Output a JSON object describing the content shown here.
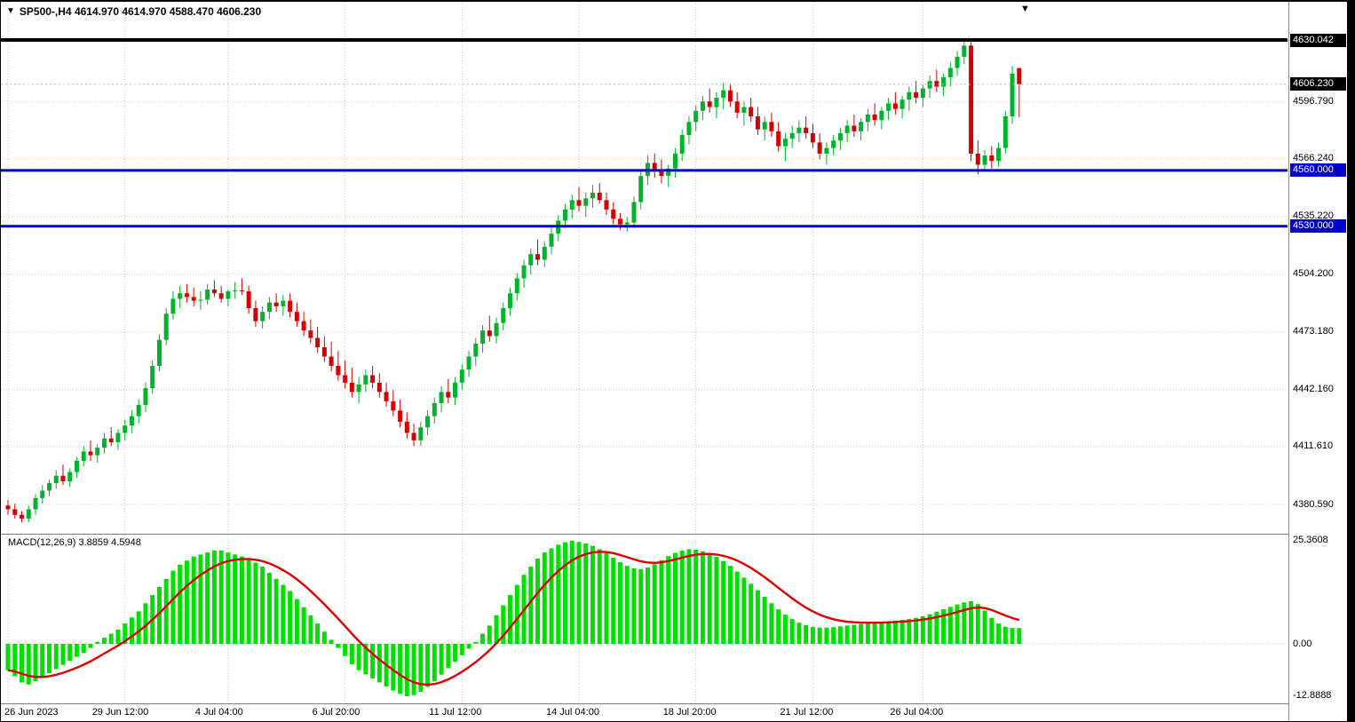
{
  "header": {
    "title": "SP500-,H4 4614.970 4614.970 4588.470 4606.230"
  },
  "icons": {
    "symbol_triangle": "▼",
    "shift_marker": "▼"
  },
  "macd_panel": {
    "label": "MACD(12,26,9) 3.8859 4.5948"
  },
  "price_axis": {
    "labels": [
      {
        "text": "4630.042",
        "price": 4630.042,
        "style": "black"
      },
      {
        "text": "4606.230",
        "price": 4606.23,
        "style": "black"
      },
      {
        "text": "4596.790",
        "price": 4596.79,
        "style": "plain"
      },
      {
        "text": "4566.240",
        "price": 4566.24,
        "style": "plain"
      },
      {
        "text": "4560.000",
        "price": 4560.0,
        "style": "blue"
      },
      {
        "text": "4535.220",
        "price": 4535.22,
        "style": "plain"
      },
      {
        "text": "4530.000",
        "price": 4530.0,
        "style": "blue"
      },
      {
        "text": "4504.200",
        "price": 4504.2,
        "style": "plain"
      },
      {
        "text": "4473.180",
        "price": 4473.18,
        "style": "plain"
      },
      {
        "text": "4442.160",
        "price": 4442.16,
        "style": "plain"
      },
      {
        "text": "4411.610",
        "price": 4411.61,
        "style": "plain"
      },
      {
        "text": "4380.590",
        "price": 4380.59,
        "style": "plain"
      }
    ]
  },
  "macd_axis": {
    "labels": [
      {
        "text": "25.3608",
        "value": 25.3608
      },
      {
        "text": "0.00",
        "value": 0
      },
      {
        "text": "-12.8888",
        "value": -12.8888
      }
    ]
  },
  "time_axis": {
    "labels": [
      {
        "text": "26 Jun 2023",
        "index": 0
      },
      {
        "text": "29 Jun 12:00",
        "index": 17
      },
      {
        "text": "4 Jul 04:00",
        "index": 32
      },
      {
        "text": "6 Jul 20:00",
        "index": 49
      },
      {
        "text": "11 Jul 12:00",
        "index": 66
      },
      {
        "text": "14 Jul 04:00",
        "index": 83
      },
      {
        "text": "18 Jul 20:00",
        "index": 100
      },
      {
        "text": "21 Jul 12:00",
        "index": 117
      },
      {
        "text": "26 Jul 04:00",
        "index": 133
      }
    ]
  },
  "hlines": [
    {
      "price": 4630.042,
      "color": "#000000",
      "width": 4,
      "dotted": false
    },
    {
      "price": 4606.23,
      "color": "#B8B8B8",
      "width": 1,
      "dotted": true
    },
    {
      "price": 4560.0,
      "color": "#0000CC",
      "width": 3,
      "dotted": false
    },
    {
      "price": 4530.0,
      "color": "#0000CC",
      "width": 3,
      "dotted": false
    }
  ],
  "chart_data": {
    "type": "candlestick",
    "symbol": "SP500-",
    "timeframe": "H4",
    "title": "SP500-,H4",
    "current_bar": {
      "open": 4614.97,
      "high": 4614.97,
      "low": 4588.47,
      "close": 4606.23
    },
    "ylim": [
      4365,
      4650
    ],
    "gridline_prices": [
      4596.79,
      4566.24,
      4535.22,
      4504.2,
      4473.18,
      4442.16,
      4411.61,
      4380.59
    ],
    "levels": {
      "resistance_black": 4630.042,
      "support_blue_upper": 4560.0,
      "support_blue_lower": 4530.0
    },
    "colors": {
      "bull": "#00B22C",
      "bear": "#D40000",
      "macd_bar": "#00E000",
      "signal": "#E00000",
      "grid": "#C8C8C8",
      "level_blue": "#0000CC",
      "level_black": "#000000"
    },
    "ohlc": [
      [
        4380,
        4383,
        4375,
        4378
      ],
      [
        4378,
        4381,
        4373,
        4375
      ],
      [
        4375,
        4377,
        4371,
        4373
      ],
      [
        4373,
        4380,
        4371,
        4378
      ],
      [
        4378,
        4386,
        4375,
        4384
      ],
      [
        4384,
        4391,
        4381,
        4388
      ],
      [
        4388,
        4394,
        4385,
        4392
      ],
      [
        4392,
        4399,
        4389,
        4396
      ],
      [
        4396,
        4402,
        4391,
        4393
      ],
      [
        4393,
        4400,
        4390,
        4398
      ],
      [
        4398,
        4406,
        4395,
        4404
      ],
      [
        4404,
        4412,
        4401,
        4409
      ],
      [
        4409,
        4415,
        4404,
        4407
      ],
      [
        4407,
        4413,
        4403,
        4411
      ],
      [
        4411,
        4419,
        4408,
        4416
      ],
      [
        4416,
        4422,
        4412,
        4414
      ],
      [
        4414,
        4421,
        4410,
        4419
      ],
      [
        4419,
        4426,
        4415,
        4423
      ],
      [
        4423,
        4431,
        4419,
        4428
      ],
      [
        4428,
        4437,
        4424,
        4434
      ],
      [
        4434,
        4446,
        4430,
        4443
      ],
      [
        4443,
        4458,
        4440,
        4455
      ],
      [
        4455,
        4472,
        4452,
        4469
      ],
      [
        4469,
        4486,
        4466,
        4483
      ],
      [
        4483,
        4495,
        4480,
        4491
      ],
      [
        4491,
        4498,
        4486,
        4494
      ],
      [
        4494,
        4499,
        4489,
        4492
      ],
      [
        4492,
        4497,
        4487,
        4490
      ],
      [
        4490,
        4495,
        4485,
        4490.5
      ],
      [
        4490.5,
        4499,
        4488,
        4496
      ],
      [
        4496,
        4501,
        4492,
        4494
      ],
      [
        4494,
        4498,
        4489,
        4491
      ],
      [
        4491,
        4496,
        4487,
        4495
      ],
      [
        4495,
        4500,
        4491,
        4495.5
      ],
      [
        4495.5,
        4502,
        4493,
        4495
      ],
      [
        4495,
        4498,
        4483,
        4486
      ],
      [
        4486,
        4490,
        4476,
        4479
      ],
      [
        4479,
        4487,
        4475,
        4484
      ],
      [
        4484,
        4492,
        4480,
        4489
      ],
      [
        4489,
        4494,
        4484,
        4487
      ],
      [
        4487,
        4493,
        4482,
        4490
      ],
      [
        4490,
        4494,
        4481,
        4484
      ],
      [
        4484,
        4489,
        4476,
        4479
      ],
      [
        4479,
        4484,
        4471,
        4474
      ],
      [
        4474,
        4480,
        4467,
        4470
      ],
      [
        4470,
        4476,
        4462,
        4465
      ],
      [
        4465,
        4471,
        4457,
        4460
      ],
      [
        4460,
        4468,
        4452,
        4455
      ],
      [
        4455,
        4463,
        4447,
        4450
      ],
      [
        4450,
        4458,
        4443,
        4446
      ],
      [
        4446,
        4454,
        4438,
        4441
      ],
      [
        4441,
        4449,
        4435,
        4445
      ],
      [
        4445,
        4453,
        4441,
        4450
      ],
      [
        4450,
        4455,
        4443,
        4446
      ],
      [
        4446,
        4451,
        4438,
        4441
      ],
      [
        4441,
        4446,
        4433,
        4436
      ],
      [
        4436,
        4442,
        4428,
        4431
      ],
      [
        4431,
        4437,
        4422,
        4425
      ],
      [
        4425,
        4430,
        4416,
        4419
      ],
      [
        4419,
        4424,
        4412,
        4415
      ],
      [
        4415,
        4425,
        4412,
        4422
      ],
      [
        4422,
        4431,
        4418,
        4428
      ],
      [
        4428,
        4438,
        4424,
        4435
      ],
      [
        4435,
        4444,
        4430,
        4441
      ],
      [
        4441,
        4448,
        4435,
        4438
      ],
      [
        4438,
        4449,
        4434,
        4446
      ],
      [
        4446,
        4456,
        4442,
        4453
      ],
      [
        4453,
        4463,
        4449,
        4460
      ],
      [
        4460,
        4470,
        4455,
        4467
      ],
      [
        4467,
        4477,
        4462,
        4474
      ],
      [
        4474,
        4482,
        4468,
        4471
      ],
      [
        4471,
        4481,
        4467,
        4478
      ],
      [
        4478,
        4489,
        4474,
        4486
      ],
      [
        4486,
        4497,
        4482,
        4494
      ],
      [
        4494,
        4505,
        4490,
        4502
      ],
      [
        4502,
        4512,
        4497,
        4509
      ],
      [
        4509,
        4518,
        4504,
        4515
      ],
      [
        4515,
        4523,
        4509,
        4512
      ],
      [
        4512,
        4522,
        4508,
        4519
      ],
      [
        4519,
        4529,
        4515,
        4526
      ],
      [
        4526,
        4536,
        4522,
        4533
      ],
      [
        4533,
        4542,
        4529,
        4539
      ],
      [
        4539,
        4547,
        4534,
        4544
      ],
      [
        4544,
        4551,
        4538,
        4541
      ],
      [
        4541,
        4548,
        4535,
        4545
      ],
      [
        4545,
        4552,
        4540,
        4548
      ],
      [
        4548,
        4553,
        4542,
        4544
      ],
      [
        4544,
        4548,
        4536,
        4539
      ],
      [
        4539,
        4543,
        4531,
        4534
      ],
      [
        4534,
        4537,
        4528,
        4531
      ],
      [
        4531,
        4535,
        4527,
        4532
      ],
      [
        4532,
        4546,
        4529,
        4543
      ],
      [
        4543,
        4560,
        4539,
        4557
      ],
      [
        4557,
        4568,
        4552,
        4564
      ],
      [
        4564,
        4569,
        4556,
        4560
      ],
      [
        4560,
        4566,
        4553,
        4557
      ],
      [
        4557,
        4563,
        4551,
        4561
      ],
      [
        4561,
        4572,
        4556,
        4569
      ],
      [
        4569,
        4582,
        4565,
        4579
      ],
      [
        4579,
        4589,
        4574,
        4586
      ],
      [
        4586,
        4595,
        4581,
        4592
      ],
      [
        4592,
        4600,
        4587,
        4597
      ],
      [
        4597,
        4604,
        4591,
        4594
      ],
      [
        4594,
        4602,
        4588,
        4599
      ],
      [
        4599,
        4607,
        4593,
        4603
      ],
      [
        4603,
        4606,
        4594,
        4597
      ],
      [
        4597,
        4602,
        4588,
        4591
      ],
      [
        4591,
        4597,
        4584,
        4594
      ],
      [
        4594,
        4599,
        4586,
        4589
      ],
      [
        4589,
        4594,
        4579,
        4582
      ],
      [
        4582,
        4589,
        4576,
        4586
      ],
      [
        4586,
        4591,
        4578,
        4581
      ],
      [
        4581,
        4586,
        4570,
        4573
      ],
      [
        4573,
        4580,
        4565,
        4577
      ],
      [
        4577,
        4584,
        4572,
        4580
      ],
      [
        4580,
        4587,
        4575,
        4583
      ],
      [
        4583,
        4589,
        4577,
        4580
      ],
      [
        4580,
        4585,
        4572,
        4575
      ],
      [
        4575,
        4580,
        4566,
        4569
      ],
      [
        4569,
        4575,
        4563,
        4572
      ],
      [
        4572,
        4579,
        4568,
        4576
      ],
      [
        4576,
        4583,
        4571,
        4580
      ],
      [
        4580,
        4587,
        4575,
        4584
      ],
      [
        4584,
        4590,
        4578,
        4581
      ],
      [
        4581,
        4588,
        4576,
        4586
      ],
      [
        4586,
        4593,
        4581,
        4590
      ],
      [
        4590,
        4596,
        4584,
        4587
      ],
      [
        4587,
        4594,
        4582,
        4592
      ],
      [
        4592,
        4599,
        4587,
        4596
      ],
      [
        4596,
        4602,
        4590,
        4593
      ],
      [
        4593,
        4600,
        4588,
        4598
      ],
      [
        4598,
        4605,
        4592,
        4602
      ],
      [
        4602,
        4608,
        4596,
        4599
      ],
      [
        4599,
        4606,
        4594,
        4604
      ],
      [
        4604,
        4611,
        4599,
        4608
      ],
      [
        4608,
        4614,
        4602,
        4605
      ],
      [
        4605,
        4612,
        4600,
        4610
      ],
      [
        4610,
        4618,
        4605,
        4615
      ],
      [
        4615,
        4624,
        4611,
        4621
      ],
      [
        4621,
        4630,
        4617,
        4627
      ],
      [
        4627,
        4629,
        4565,
        4569
      ],
      [
        4569,
        4576,
        4558,
        4563
      ],
      [
        4563,
        4571,
        4560,
        4568
      ],
      [
        4568,
        4573,
        4561,
        4565
      ],
      [
        4565,
        4575,
        4562,
        4572
      ],
      [
        4572,
        4592,
        4569,
        4589
      ],
      [
        4589,
        4616,
        4585,
        4612
      ],
      [
        4614.97,
        4614.97,
        4588.47,
        4606.23
      ]
    ],
    "macd": {
      "params": "12,26,9",
      "last_main": 3.8859,
      "last_signal": 4.5948,
      "signal_period": 9,
      "scale": {
        "max_label": 25.3608,
        "zero": 0,
        "min_label": -12.8888
      },
      "histogram": [
        -6.5,
        -8,
        -9.5,
        -10,
        -9.2,
        -8.2,
        -7.2,
        -6.2,
        -5.2,
        -4.2,
        -3.2,
        -2.2,
        -1,
        0.5,
        1.5,
        2.5,
        3.5,
        5,
        6.5,
        8,
        10,
        12,
        14,
        16,
        18,
        19.5,
        20.5,
        21.5,
        22,
        22.5,
        23,
        23,
        22.5,
        22,
        21.5,
        21,
        20,
        19,
        17.5,
        16,
        14.5,
        13,
        11,
        9,
        7,
        5,
        3,
        1,
        -1,
        -3,
        -5,
        -6.5,
        -7.5,
        -8.5,
        -9.5,
        -10.5,
        -11.5,
        -12.3,
        -12.89,
        -12.6,
        -11.8,
        -10.6,
        -9.2,
        -7.6,
        -6,
        -4.4,
        -2.8,
        -1.2,
        0.5,
        2.5,
        4.5,
        7,
        9.5,
        12,
        14.5,
        17,
        19,
        21,
        22.5,
        23.5,
        24.4,
        25,
        25.36,
        25.1,
        24.7,
        24.1,
        23.3,
        22.3,
        21.2,
        20.1,
        19.2,
        18.6,
        18.4,
        18.8,
        19.6,
        20.6,
        21.6,
        22.4,
        23,
        23.3,
        23.2,
        22.8,
        22.2,
        21.4,
        20.4,
        19.2,
        17.8,
        16.3,
        14.8,
        13.2,
        11.6,
        10,
        8.5,
        7.2,
        6.1,
        5.2,
        4.6,
        4.2,
        4,
        4,
        4.1,
        4.3,
        4.5,
        4.7,
        4.9,
        5.1,
        5.2,
        5.3,
        5.5,
        5.7,
        5.9,
        6.1,
        6.4,
        6.8,
        7.3,
        7.9,
        8.5,
        9.1,
        9.7,
        10.2,
        10.5,
        9.8,
        8.2,
        6.4,
        5,
        4.2,
        3.9,
        3.8859
      ]
    }
  }
}
